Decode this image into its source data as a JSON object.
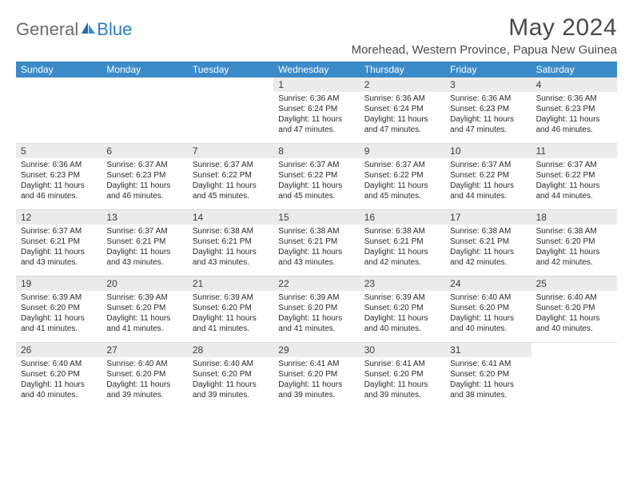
{
  "brand": {
    "general": "General",
    "blue": "Blue"
  },
  "title": "May 2024",
  "location": "Morehead, Western Province, Papua New Guinea",
  "header_bg": "#3b8bc9",
  "day_names": [
    "Sunday",
    "Monday",
    "Tuesday",
    "Wednesday",
    "Thursday",
    "Friday",
    "Saturday"
  ],
  "weeks": [
    [
      null,
      null,
      null,
      {
        "n": "1",
        "sr": "6:36 AM",
        "ss": "6:24 PM",
        "dl": "11 hours and 47 minutes."
      },
      {
        "n": "2",
        "sr": "6:36 AM",
        "ss": "6:24 PM",
        "dl": "11 hours and 47 minutes."
      },
      {
        "n": "3",
        "sr": "6:36 AM",
        "ss": "6:23 PM",
        "dl": "11 hours and 47 minutes."
      },
      {
        "n": "4",
        "sr": "6:36 AM",
        "ss": "6:23 PM",
        "dl": "11 hours and 46 minutes."
      }
    ],
    [
      {
        "n": "5",
        "sr": "6:36 AM",
        "ss": "6:23 PM",
        "dl": "11 hours and 46 minutes."
      },
      {
        "n": "6",
        "sr": "6:37 AM",
        "ss": "6:23 PM",
        "dl": "11 hours and 46 minutes."
      },
      {
        "n": "7",
        "sr": "6:37 AM",
        "ss": "6:22 PM",
        "dl": "11 hours and 45 minutes."
      },
      {
        "n": "8",
        "sr": "6:37 AM",
        "ss": "6:22 PM",
        "dl": "11 hours and 45 minutes."
      },
      {
        "n": "9",
        "sr": "6:37 AM",
        "ss": "6:22 PM",
        "dl": "11 hours and 45 minutes."
      },
      {
        "n": "10",
        "sr": "6:37 AM",
        "ss": "6:22 PM",
        "dl": "11 hours and 44 minutes."
      },
      {
        "n": "11",
        "sr": "6:37 AM",
        "ss": "6:22 PM",
        "dl": "11 hours and 44 minutes."
      }
    ],
    [
      {
        "n": "12",
        "sr": "6:37 AM",
        "ss": "6:21 PM",
        "dl": "11 hours and 43 minutes."
      },
      {
        "n": "13",
        "sr": "6:37 AM",
        "ss": "6:21 PM",
        "dl": "11 hours and 43 minutes."
      },
      {
        "n": "14",
        "sr": "6:38 AM",
        "ss": "6:21 PM",
        "dl": "11 hours and 43 minutes."
      },
      {
        "n": "15",
        "sr": "6:38 AM",
        "ss": "6:21 PM",
        "dl": "11 hours and 43 minutes."
      },
      {
        "n": "16",
        "sr": "6:38 AM",
        "ss": "6:21 PM",
        "dl": "11 hours and 42 minutes."
      },
      {
        "n": "17",
        "sr": "6:38 AM",
        "ss": "6:21 PM",
        "dl": "11 hours and 42 minutes."
      },
      {
        "n": "18",
        "sr": "6:38 AM",
        "ss": "6:20 PM",
        "dl": "11 hours and 42 minutes."
      }
    ],
    [
      {
        "n": "19",
        "sr": "6:39 AM",
        "ss": "6:20 PM",
        "dl": "11 hours and 41 minutes."
      },
      {
        "n": "20",
        "sr": "6:39 AM",
        "ss": "6:20 PM",
        "dl": "11 hours and 41 minutes."
      },
      {
        "n": "21",
        "sr": "6:39 AM",
        "ss": "6:20 PM",
        "dl": "11 hours and 41 minutes."
      },
      {
        "n": "22",
        "sr": "6:39 AM",
        "ss": "6:20 PM",
        "dl": "11 hours and 41 minutes."
      },
      {
        "n": "23",
        "sr": "6:39 AM",
        "ss": "6:20 PM",
        "dl": "11 hours and 40 minutes."
      },
      {
        "n": "24",
        "sr": "6:40 AM",
        "ss": "6:20 PM",
        "dl": "11 hours and 40 minutes."
      },
      {
        "n": "25",
        "sr": "6:40 AM",
        "ss": "6:20 PM",
        "dl": "11 hours and 40 minutes."
      }
    ],
    [
      {
        "n": "26",
        "sr": "6:40 AM",
        "ss": "6:20 PM",
        "dl": "11 hours and 40 minutes."
      },
      {
        "n": "27",
        "sr": "6:40 AM",
        "ss": "6:20 PM",
        "dl": "11 hours and 39 minutes."
      },
      {
        "n": "28",
        "sr": "6:40 AM",
        "ss": "6:20 PM",
        "dl": "11 hours and 39 minutes."
      },
      {
        "n": "29",
        "sr": "6:41 AM",
        "ss": "6:20 PM",
        "dl": "11 hours and 39 minutes."
      },
      {
        "n": "30",
        "sr": "6:41 AM",
        "ss": "6:20 PM",
        "dl": "11 hours and 39 minutes."
      },
      {
        "n": "31",
        "sr": "6:41 AM",
        "ss": "6:20 PM",
        "dl": "11 hours and 38 minutes."
      },
      null
    ]
  ],
  "labels": {
    "sunrise": "Sunrise: ",
    "sunset": "Sunset: ",
    "daylight": "Daylight: "
  }
}
